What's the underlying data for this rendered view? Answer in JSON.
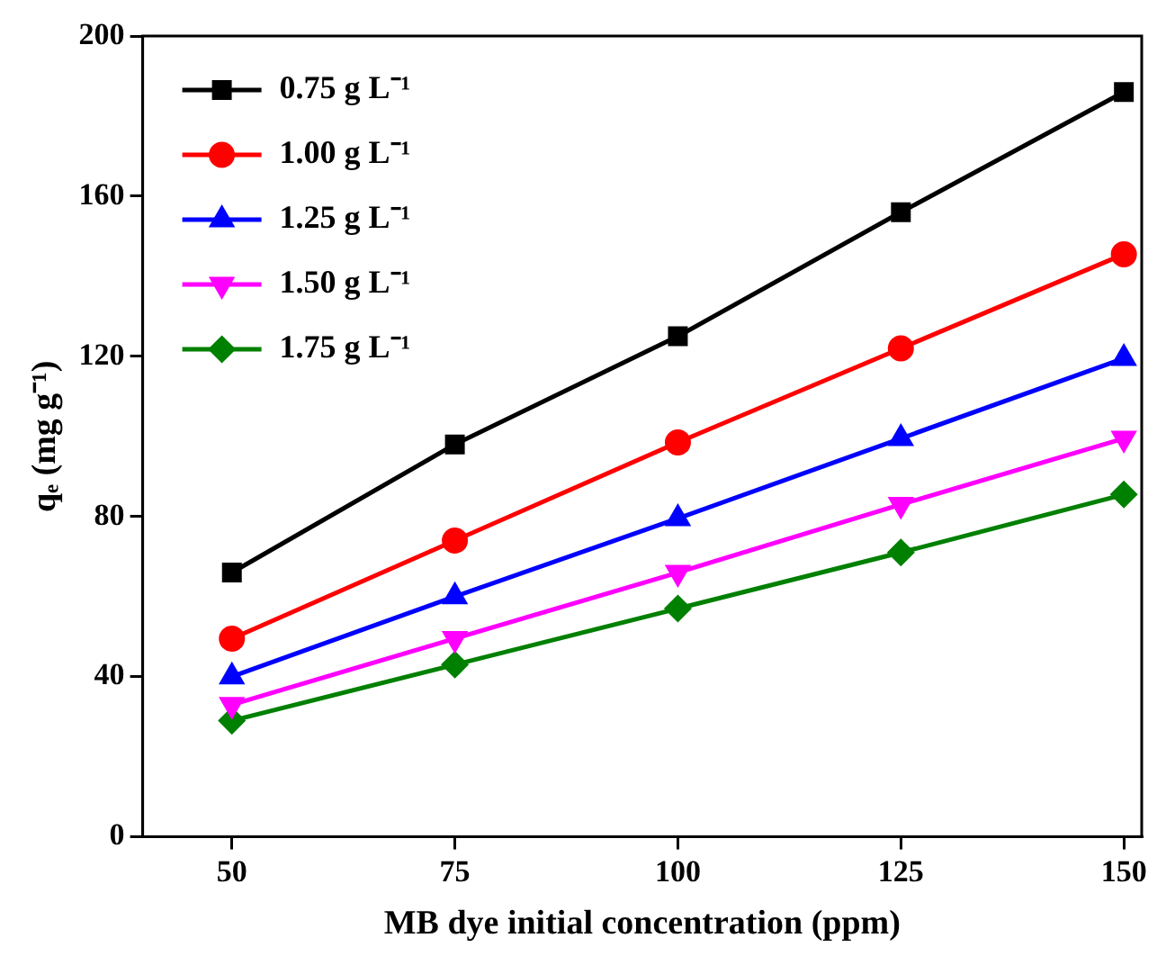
{
  "chart_data": {
    "type": "line",
    "xlabel": "MB dye initial concentration (ppm)",
    "ylabel": "qₑ (mg g⁻¹)",
    "x": [
      50,
      75,
      100,
      125,
      150
    ],
    "xlim": [
      40,
      152
    ],
    "xticks": [
      50,
      75,
      100,
      125,
      150
    ],
    "ylim": [
      0,
      200
    ],
    "yticks": [
      0,
      40,
      80,
      120,
      160,
      200
    ],
    "grid": false,
    "legend": "top left",
    "line_style": "solid",
    "series": [
      {
        "name": "0.75 g L⁻¹",
        "color": "#000000",
        "marker": "square",
        "values": [
          66,
          98,
          125,
          156,
          186
        ]
      },
      {
        "name": "1.00 g L⁻¹",
        "color": "#ff0000",
        "marker": "circle",
        "values": [
          49.5,
          74,
          98.5,
          122,
          145.5
        ]
      },
      {
        "name": "1.25 g L⁻¹",
        "color": "#0000ff",
        "marker": "triangle",
        "values": [
          40,
          60,
          79.5,
          99.5,
          119.5
        ]
      },
      {
        "name": "1.50 g L⁻¹",
        "color": "#ff00ff",
        "marker": "triangle-down",
        "values": [
          33,
          49.5,
          66,
          83,
          99.5
        ]
      },
      {
        "name": "1.75 g L⁻¹",
        "color": "#008000",
        "marker": "diamond",
        "values": [
          29,
          43,
          57,
          71,
          85.5
        ]
      }
    ]
  }
}
